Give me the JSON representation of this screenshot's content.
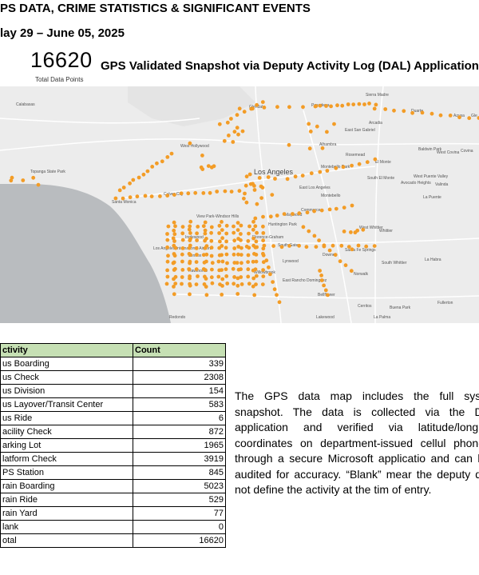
{
  "header": {
    "title": "PS DATA, CRIME STATISTICS & SIGNIFICANT EVENTS",
    "date_range": "lay 29 – June 05, 2025"
  },
  "snapshot": {
    "total_value": "16620",
    "total_label": "Total Data Points",
    "title": "GPS Validated Snapshot via Deputy Activity Log (DAL) Application"
  },
  "map": {
    "places": {
      "calabasas": "Calabasas",
      "glendale": "Glendale",
      "pasadena": "Pasadena",
      "sierra_madre": "Sierra Madre",
      "duarte": "Duarte",
      "azusa": "Azusa",
      "arcadia": "Arcadia",
      "east_san_gabriel": "East San Gabriel",
      "alhambra": "Alhambra",
      "rosemead": "Rosemead",
      "baldwin_park": "Baldwin Park",
      "west_covina": "West Covina",
      "covina": "Covina",
      "el_monte": "El Monte",
      "west_hollywood": "West Hollywood",
      "los_angeles": "Los Angeles",
      "montebello_park": "Montebello Park",
      "south_el_monte": "South El Monte",
      "west_puente_valley": "West Puente Valley",
      "avocado_heights": "Avocado Heights",
      "valinda": "Valinda",
      "la_puente": "La Puente",
      "topanga_state_park": "Topanga State Park",
      "culver_city": "Culver City",
      "east_los_angeles": "East Los Angeles",
      "montebello": "Montebello",
      "santa_monica": "Santa Monica",
      "commerce": "Commerce",
      "maywood": "Maywood",
      "view_park": "View Park-Windsor Hills",
      "huntington_park": "Huntington Park",
      "florence_graham": "Florence-Graham",
      "west_whittier": "West Whittier",
      "whittier": "Whittier",
      "inglewood": "Inglewood",
      "south_gate": "South Gate",
      "downey": "Downey",
      "santa_fe_springs": "Santa Fe Springs",
      "lax": "Los Angeles International Airport",
      "lennox": "Lennox",
      "hawthorne": "Hawthorne",
      "lynwood": "Lynwood",
      "willowbrook": "Willowbrook",
      "east_rancho": "East Rancho Dominguez",
      "bellflower": "Bellflower",
      "norwalk": "Norwalk",
      "south_whittier": "South Whittier",
      "la_habra": "La Habra",
      "fullerton": "Fullerton",
      "cerritos": "Cerritos",
      "buena_park": "Buena Park",
      "redondo": "Redondo",
      "lakewood": "Lakewood",
      "la_palma": "La Palma",
      "glendora_partial": "Gle"
    },
    "colors": {
      "land": "#ececec",
      "ocean": "#b9bcbf",
      "dot": "#f39c26",
      "road": "#ffffff"
    }
  },
  "table": {
    "header": {
      "activity": "ctivity",
      "count": "Count"
    },
    "rows": [
      {
        "activity": "us Boarding",
        "count": "339"
      },
      {
        "activity": "us Check",
        "count": "2308"
      },
      {
        "activity": "us Division",
        "count": "154"
      },
      {
        "activity": "us Layover/Transit Center",
        "count": "583"
      },
      {
        "activity": "us Ride",
        "count": "6"
      },
      {
        "activity": "acility Check",
        "count": "872"
      },
      {
        "activity": "arking Lot",
        "count": "1965"
      },
      {
        "activity": "latform Check",
        "count": "3919"
      },
      {
        "activity": "PS Station",
        "count": "845"
      },
      {
        "activity": "rain Boarding",
        "count": "5023"
      },
      {
        "activity": "rain Ride",
        "count": "529"
      },
      {
        "activity": "rain Yard",
        "count": "77"
      },
      {
        "activity": "lank",
        "count": "0"
      },
      {
        "activity": "otal",
        "count": "16620"
      }
    ]
  },
  "description": "The GPS data map includes the full syste snapshot. The data is collected via the DA application and verified via latitude/longitu coordinates on department-issued cellul phones through a secure Microsoft applicatio and can be audited for accuracy. “Blank” mear the deputy did not define the activity at the tim of entry."
}
